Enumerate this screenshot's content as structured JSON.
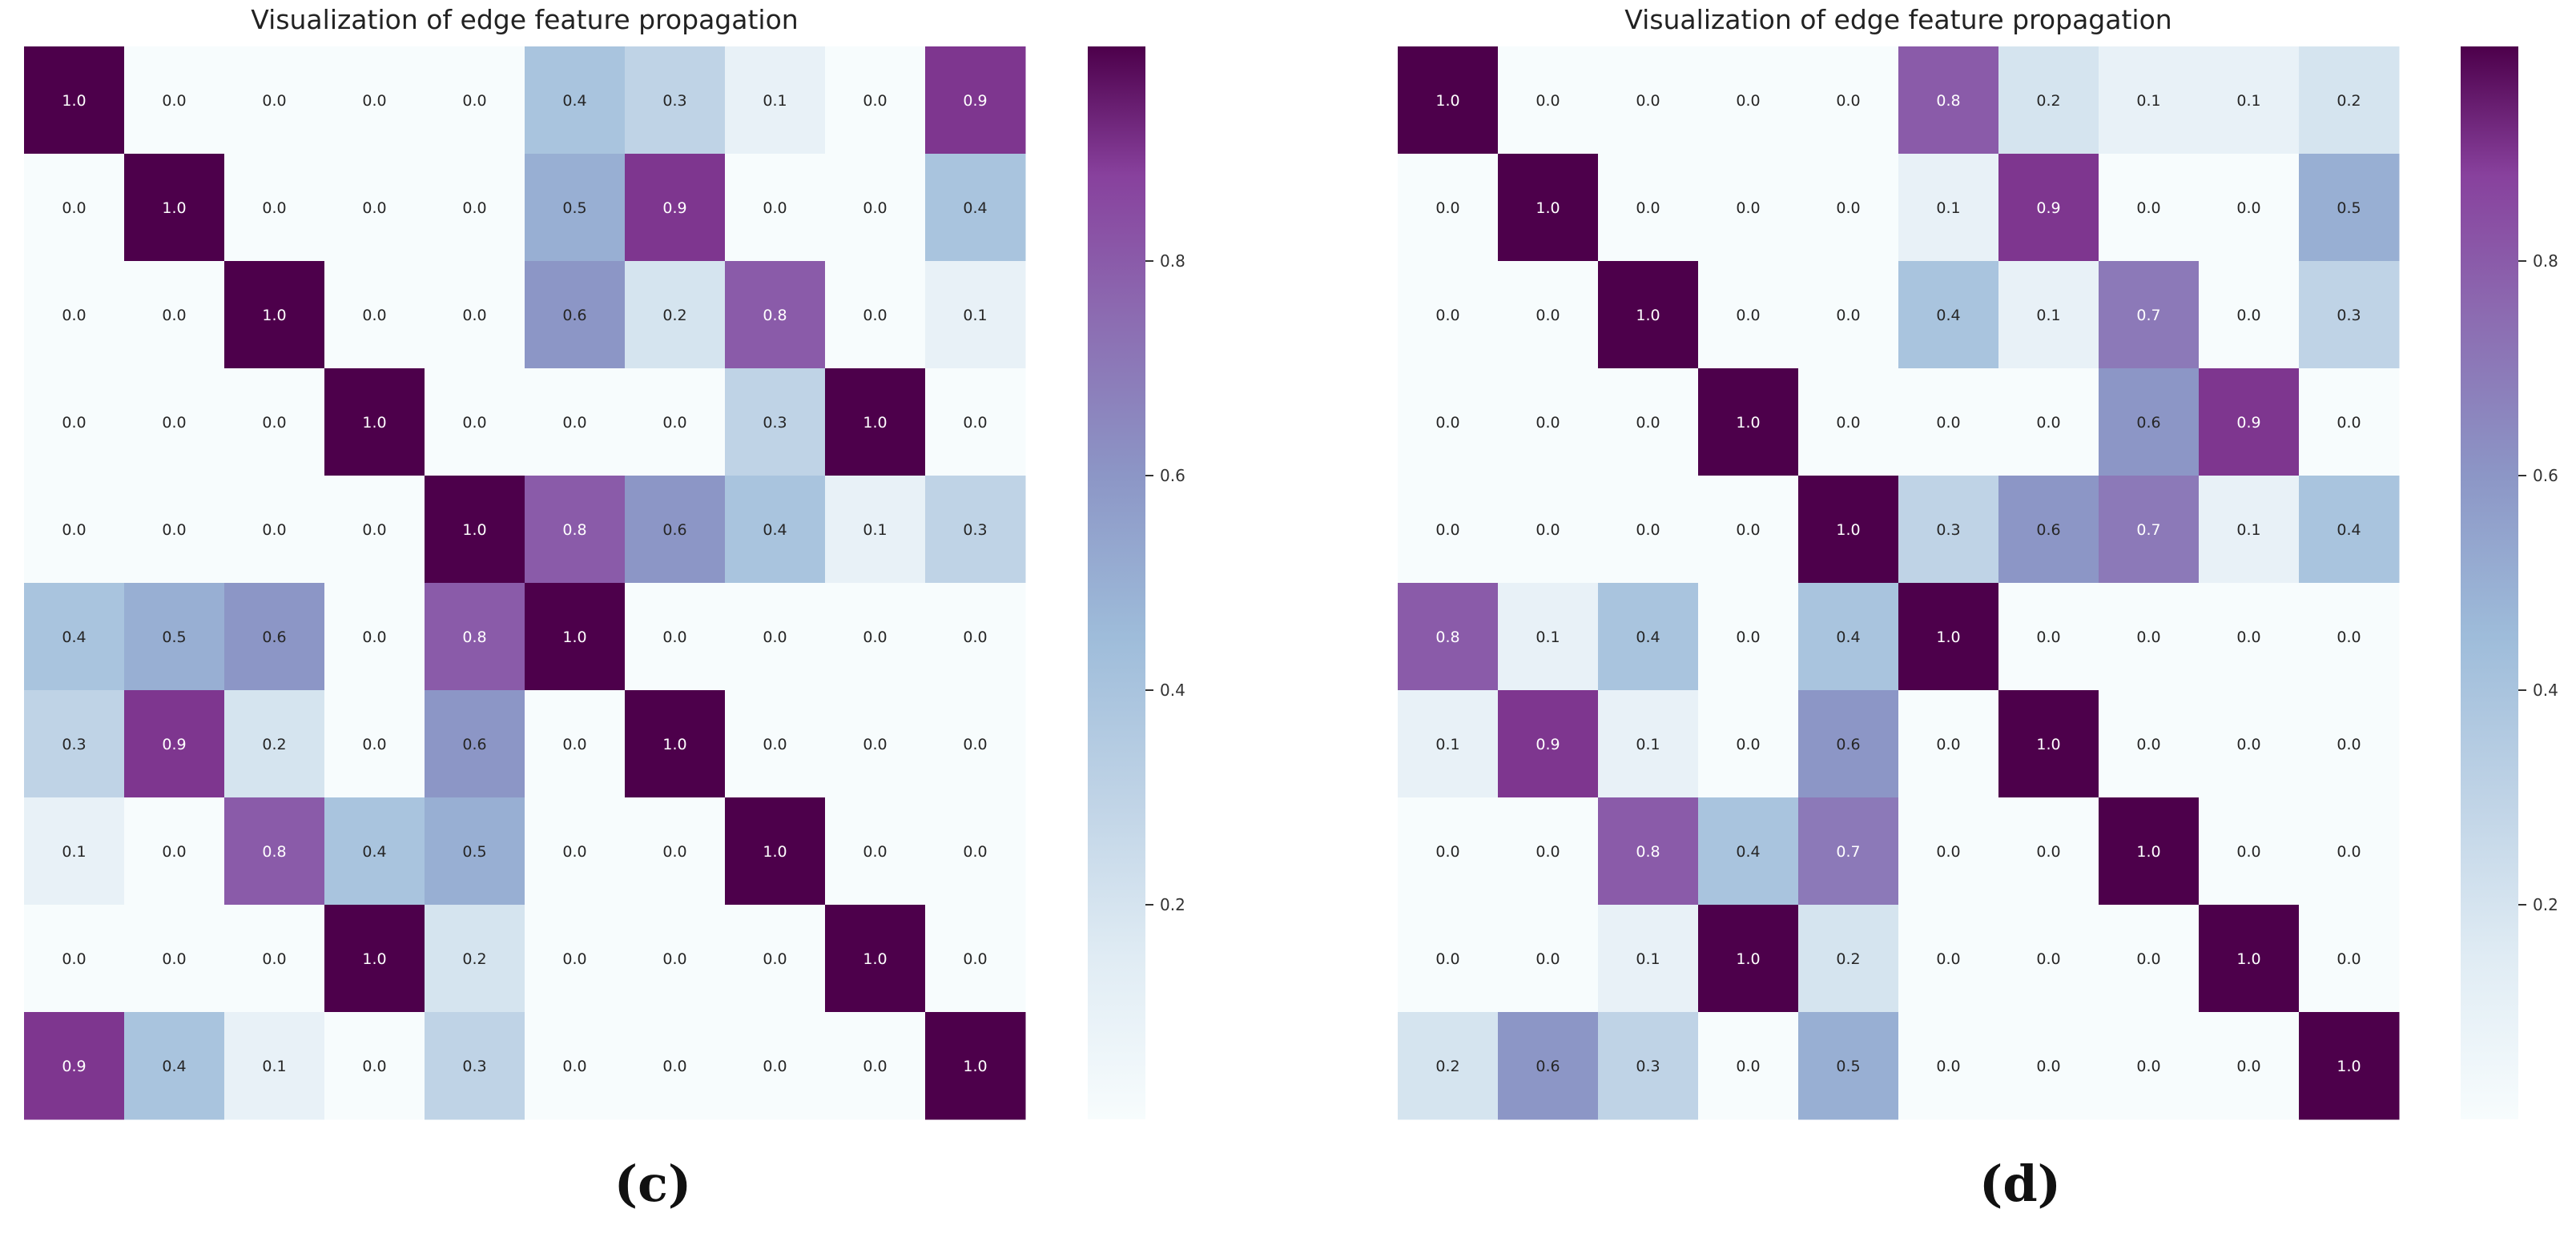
{
  "chart_data": [
    {
      "type": "heatmap",
      "title": "Visualization of edge feature propagation",
      "panel_label": "(c)",
      "colorbar_ticks": [
        0.2,
        0.4,
        0.6,
        0.8
      ],
      "colorbar_range": [
        0.0,
        1.0
      ],
      "colormap": "BuPu",
      "matrix": [
        [
          1.0,
          0.0,
          0.0,
          0.0,
          0.0,
          0.4,
          0.3,
          0.1,
          0.0,
          0.9
        ],
        [
          0.0,
          1.0,
          0.0,
          0.0,
          0.0,
          0.5,
          0.9,
          0.0,
          0.0,
          0.4
        ],
        [
          0.0,
          0.0,
          1.0,
          0.0,
          0.0,
          0.6,
          0.2,
          0.8,
          0.0,
          0.1
        ],
        [
          0.0,
          0.0,
          0.0,
          1.0,
          0.0,
          0.0,
          0.0,
          0.3,
          1.0,
          0.0
        ],
        [
          0.0,
          0.0,
          0.0,
          0.0,
          1.0,
          0.8,
          0.6,
          0.4,
          0.1,
          0.3
        ],
        [
          0.4,
          0.5,
          0.6,
          0.0,
          0.8,
          1.0,
          0.0,
          0.0,
          0.0,
          0.0
        ],
        [
          0.3,
          0.9,
          0.2,
          0.0,
          0.6,
          0.0,
          1.0,
          0.0,
          0.0,
          0.0
        ],
        [
          0.1,
          0.0,
          0.8,
          0.4,
          0.5,
          0.0,
          0.0,
          1.0,
          0.0,
          0.0
        ],
        [
          0.0,
          0.0,
          0.0,
          1.0,
          0.2,
          0.0,
          0.0,
          0.0,
          1.0,
          0.0
        ],
        [
          0.9,
          0.4,
          0.1,
          0.0,
          0.3,
          0.0,
          0.0,
          0.0,
          0.0,
          1.0
        ]
      ]
    },
    {
      "type": "heatmap",
      "title": "Visualization of edge feature propagation",
      "panel_label": "(d)",
      "colorbar_ticks": [
        0.2,
        0.4,
        0.6,
        0.8
      ],
      "colorbar_range": [
        0.0,
        1.0
      ],
      "colormap": "BuPu",
      "matrix": [
        [
          1.0,
          0.0,
          0.0,
          0.0,
          0.0,
          0.8,
          0.2,
          0.1,
          0.1,
          0.2
        ],
        [
          0.0,
          1.0,
          0.0,
          0.0,
          0.0,
          0.1,
          0.9,
          0.0,
          0.0,
          0.5
        ],
        [
          0.0,
          0.0,
          1.0,
          0.0,
          0.0,
          0.4,
          0.1,
          0.7,
          0.0,
          0.3
        ],
        [
          0.0,
          0.0,
          0.0,
          1.0,
          0.0,
          0.0,
          0.0,
          0.6,
          0.9,
          0.0
        ],
        [
          0.0,
          0.0,
          0.0,
          0.0,
          1.0,
          0.3,
          0.6,
          0.7,
          0.1,
          0.4
        ],
        [
          0.8,
          0.1,
          0.4,
          0.0,
          0.4,
          1.0,
          0.0,
          0.0,
          0.0,
          0.0
        ],
        [
          0.1,
          0.9,
          0.1,
          0.0,
          0.6,
          0.0,
          1.0,
          0.0,
          0.0,
          0.0
        ],
        [
          0.0,
          0.0,
          0.8,
          0.4,
          0.7,
          0.0,
          0.0,
          1.0,
          0.0,
          0.0
        ],
        [
          0.0,
          0.0,
          0.1,
          1.0,
          0.2,
          0.0,
          0.0,
          0.0,
          1.0,
          0.0
        ],
        [
          0.2,
          0.6,
          0.3,
          0.0,
          0.5,
          0.0,
          0.0,
          0.0,
          0.0,
          1.0
        ]
      ]
    }
  ]
}
